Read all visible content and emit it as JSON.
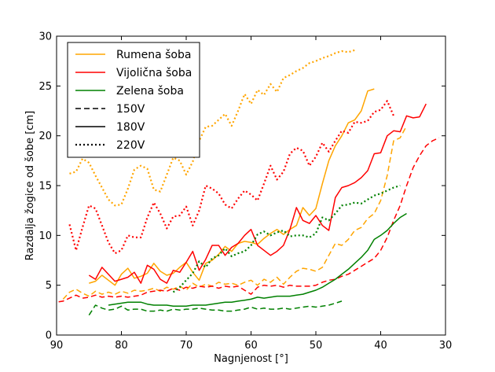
{
  "chart_data": {
    "type": "line",
    "xlabel": "Nagnjenost [°]",
    "ylabel": "Razdalja žogice od šobe [cm]",
    "xlim": [
      90,
      30
    ],
    "ylim": [
      0,
      30
    ],
    "x_ticks": [
      90,
      80,
      70,
      60,
      50,
      40,
      30
    ],
    "y_ticks": [
      0,
      5,
      10,
      15,
      20,
      25,
      30
    ],
    "grid": false,
    "legend_position": "top-left",
    "legend": [
      {
        "label": "Rumena šoba",
        "color": "#ffa500",
        "dash": "solid"
      },
      {
        "label": "Vijolična šoba",
        "color": "#ff0000",
        "dash": "solid"
      },
      {
        "label": "Zelena šoba",
        "color": "#008000",
        "dash": "solid"
      },
      {
        "label": "150V",
        "color": "#000000",
        "dash": "dashed"
      },
      {
        "label": "180V",
        "color": "#000000",
        "dash": "solid"
      },
      {
        "label": "220V",
        "color": "#000000",
        "dash": "dotted"
      }
    ],
    "series": [
      {
        "nozzle": "Rumena šoba",
        "voltage": "150V",
        "color": "#ffa500",
        "dash": "dashed",
        "x": [
          89,
          88,
          87,
          86,
          85,
          84,
          83,
          82,
          81,
          80,
          79,
          78,
          77,
          76,
          75,
          74,
          73,
          72,
          71,
          70,
          69,
          68,
          67,
          66,
          65,
          64,
          63,
          62,
          61,
          60,
          59,
          58,
          57,
          56,
          55,
          54,
          53,
          52,
          51,
          50,
          49,
          48,
          47,
          46,
          45,
          44,
          43,
          42,
          41,
          40,
          39,
          38,
          37,
          36
        ],
        "y": [
          3.6,
          4.3,
          4.6,
          4.2,
          3.9,
          4.4,
          4.1,
          4.3,
          4.1,
          4.4,
          4.2,
          4.5,
          4.4,
          4.5,
          4.7,
          4.4,
          4.8,
          4.6,
          4.9,
          4.5,
          5.2,
          4.8,
          5.1,
          4.9,
          5.3,
          5.1,
          5.2,
          5.0,
          5.3,
          5.5,
          5.0,
          5.6,
          5.3,
          5.8,
          5.1,
          5.8,
          6.4,
          6.7,
          6.6,
          6.4,
          6.8,
          8.0,
          9.2,
          9.0,
          9.6,
          10.5,
          10.8,
          11.7,
          12.2,
          13.5,
          16.0,
          19.5,
          19.8,
          21.0
        ]
      },
      {
        "nozzle": "Rumena šoba",
        "voltage": "180V",
        "color": "#ffa500",
        "dash": "solid",
        "x": [
          85,
          84,
          83,
          82,
          81,
          80,
          79,
          78,
          77,
          76,
          75,
          74,
          73,
          72,
          71,
          70,
          69,
          68,
          67,
          66,
          65,
          64,
          63,
          62,
          61,
          60,
          59,
          58,
          57,
          56,
          55,
          54,
          53,
          52,
          51,
          50,
          49,
          48,
          47,
          46,
          45,
          44,
          43,
          42,
          41
        ],
        "y": [
          5.2,
          5.4,
          6.0,
          5.5,
          5.0,
          6.1,
          6.7,
          5.7,
          5.9,
          6.2,
          7.2,
          6.4,
          6.0,
          6.2,
          6.8,
          7.3,
          6.3,
          5.5,
          7.2,
          7.5,
          8.1,
          8.9,
          8.4,
          9.2,
          9.4,
          9.3,
          9.1,
          9.7,
          10.2,
          10.6,
          10.1,
          10.6,
          11.0,
          12.8,
          12.0,
          12.7,
          15.2,
          17.5,
          19.0,
          20.0,
          21.3,
          21.6,
          22.5,
          24.5,
          24.7
        ]
      },
      {
        "nozzle": "Rumena šoba",
        "voltage": "220V",
        "color": "#ffa500",
        "dash": "dotted",
        "x": [
          88,
          87,
          86,
          85,
          84,
          83,
          82,
          81,
          80,
          79,
          78,
          77,
          76,
          75,
          74,
          73,
          72,
          71,
          70,
          69,
          68,
          67,
          66,
          65,
          64,
          63,
          62,
          61,
          60,
          59,
          58,
          57,
          56,
          55,
          54,
          53,
          52,
          51,
          50,
          49,
          48,
          47,
          46,
          45,
          44
        ],
        "y": [
          16.2,
          16.4,
          17.7,
          17.3,
          16.0,
          14.8,
          13.6,
          13.0,
          13.1,
          14.7,
          16.6,
          17.0,
          16.7,
          14.6,
          14.4,
          16.1,
          17.8,
          17.5,
          16.1,
          17.4,
          19.5,
          20.9,
          21.0,
          21.6,
          22.2,
          21.0,
          22.5,
          24.2,
          23.2,
          24.6,
          24.1,
          25.2,
          24.4,
          25.8,
          26.1,
          26.5,
          26.8,
          27.3,
          27.5,
          27.8,
          28.0,
          28.3,
          28.5,
          28.4,
          28.6
        ]
      },
      {
        "nozzle": "Vijolična šoba",
        "voltage": "150V",
        "color": "#ff0000",
        "dash": "dashed",
        "x": [
          91,
          90,
          89,
          88,
          87,
          86,
          85,
          84,
          83,
          82,
          81,
          80,
          79,
          78,
          77,
          76,
          75,
          74,
          73,
          72,
          71,
          70,
          69,
          68,
          67,
          66,
          65,
          64,
          63,
          62,
          61,
          60,
          59,
          58,
          57,
          56,
          55,
          54,
          53,
          52,
          51,
          50,
          49,
          48,
          47,
          46,
          45,
          44,
          43,
          42,
          41,
          40,
          39,
          38,
          37,
          36,
          35,
          34,
          33,
          32,
          31
        ],
        "y": [
          3.4,
          3.3,
          3.4,
          3.7,
          4.0,
          3.7,
          3.8,
          4.0,
          3.8,
          3.9,
          3.8,
          3.9,
          3.8,
          3.9,
          4.0,
          4.3,
          4.4,
          4.5,
          4.4,
          4.7,
          4.5,
          4.8,
          4.7,
          4.9,
          4.8,
          4.9,
          4.7,
          4.9,
          4.8,
          4.9,
          4.5,
          4.1,
          4.8,
          5.0,
          4.9,
          5.0,
          4.8,
          5.0,
          4.9,
          4.9,
          4.9,
          5.0,
          5.3,
          5.5,
          5.6,
          5.9,
          6.1,
          6.5,
          6.9,
          7.3,
          7.7,
          8.5,
          9.8,
          11.5,
          13.0,
          15.0,
          16.8,
          18.0,
          19.0,
          19.5,
          19.8
        ]
      },
      {
        "nozzle": "Vijolična šoba",
        "voltage": "180V",
        "color": "#ff0000",
        "dash": "solid",
        "x": [
          85,
          84,
          83,
          82,
          81,
          80,
          79,
          78,
          77,
          76,
          75,
          74,
          73,
          72,
          71,
          70,
          69,
          68,
          67,
          66,
          65,
          64,
          63,
          62,
          61,
          60,
          59,
          58,
          57,
          56,
          55,
          54,
          53,
          52,
          51,
          50,
          49,
          48,
          47,
          46,
          45,
          44,
          43,
          42,
          41,
          40,
          39,
          38,
          37,
          36,
          35,
          34,
          33
        ],
        "y": [
          6.0,
          5.6,
          6.8,
          6.1,
          5.4,
          5.6,
          5.8,
          6.3,
          5.2,
          7.0,
          6.6,
          5.6,
          5.2,
          6.5,
          6.3,
          7.3,
          8.4,
          6.5,
          7.6,
          9.0,
          9.0,
          8.0,
          8.8,
          9.2,
          10.0,
          10.6,
          9.0,
          8.5,
          8.0,
          8.4,
          9.0,
          10.6,
          12.8,
          11.5,
          11.2,
          12.0,
          11.0,
          10.5,
          13.8,
          14.8,
          15.0,
          15.3,
          15.8,
          16.5,
          18.2,
          18.3,
          20.0,
          20.5,
          20.4,
          22.0,
          21.8,
          21.9,
          23.2
        ]
      },
      {
        "nozzle": "Vijolična šoba",
        "voltage": "220V",
        "color": "#ff0000",
        "dash": "dotted",
        "x": [
          88,
          87,
          86,
          85,
          84,
          83,
          82,
          81,
          80,
          79,
          78,
          77,
          76,
          75,
          74,
          73,
          72,
          71,
          70,
          69,
          68,
          67,
          66,
          65,
          64,
          63,
          62,
          61,
          60,
          59,
          58,
          57,
          56,
          55,
          54,
          53,
          52,
          51,
          50,
          49,
          48,
          47,
          46,
          45,
          44,
          43,
          42,
          41,
          40,
          39,
          38
        ],
        "y": [
          11.1,
          8.5,
          10.8,
          13.0,
          12.7,
          11.0,
          9.3,
          8.2,
          8.5,
          10.0,
          9.8,
          9.8,
          11.8,
          13.3,
          12.2,
          10.7,
          11.9,
          12.0,
          12.9,
          11.0,
          12.5,
          15.0,
          14.7,
          14.2,
          13.1,
          12.7,
          13.7,
          14.5,
          14.1,
          13.5,
          15.2,
          17.0,
          15.6,
          16.4,
          18.2,
          18.8,
          18.5,
          17.0,
          17.9,
          19.3,
          18.4,
          19.5,
          20.5,
          20.3,
          21.4,
          21.3,
          21.5,
          22.4,
          22.6,
          23.5,
          22.0
        ]
      },
      {
        "nozzle": "Zelena šoba",
        "voltage": "150V",
        "color": "#008000",
        "dash": "dashed",
        "x": [
          85,
          84,
          83,
          82,
          81,
          80,
          79,
          78,
          77,
          76,
          75,
          74,
          73,
          72,
          71,
          70,
          69,
          68,
          67,
          66,
          65,
          64,
          63,
          62,
          61,
          60,
          59,
          58,
          57,
          56,
          55,
          54,
          53,
          52,
          51,
          50,
          49,
          48,
          47,
          46
        ],
        "y": [
          2.0,
          3.0,
          2.7,
          2.5,
          2.6,
          2.9,
          2.5,
          2.6,
          2.6,
          2.4,
          2.4,
          2.5,
          2.4,
          2.6,
          2.5,
          2.6,
          2.6,
          2.7,
          2.6,
          2.5,
          2.5,
          2.4,
          2.4,
          2.5,
          2.6,
          2.8,
          2.6,
          2.7,
          2.6,
          2.6,
          2.7,
          2.6,
          2.7,
          2.8,
          2.9,
          2.8,
          2.9,
          3.0,
          3.2,
          3.4
        ]
      },
      {
        "nozzle": "Zelena šoba",
        "voltage": "180V",
        "color": "#008000",
        "dash": "solid",
        "x": [
          82,
          81,
          80,
          79,
          78,
          77,
          76,
          75,
          74,
          73,
          72,
          71,
          70,
          69,
          68,
          67,
          66,
          65,
          64,
          63,
          62,
          61,
          60,
          59,
          58,
          57,
          56,
          55,
          54,
          53,
          52,
          51,
          50,
          49,
          48,
          47,
          46,
          45,
          44,
          43,
          42,
          41,
          40,
          39,
          38,
          37,
          36
        ],
        "y": [
          3.0,
          3.1,
          3.2,
          3.3,
          3.3,
          3.3,
          3.1,
          3.0,
          3.0,
          3.0,
          2.9,
          2.9,
          2.9,
          3.0,
          3.0,
          3.0,
          3.1,
          3.2,
          3.3,
          3.3,
          3.4,
          3.5,
          3.6,
          3.8,
          3.7,
          3.8,
          3.9,
          3.9,
          3.9,
          4.0,
          4.1,
          4.3,
          4.5,
          4.8,
          5.2,
          5.6,
          6.1,
          6.6,
          7.2,
          7.8,
          8.5,
          9.6,
          10.0,
          10.5,
          11.2,
          11.8,
          12.2
        ]
      },
      {
        "nozzle": "Zelena šoba",
        "voltage": "220V",
        "color": "#008000",
        "dash": "dotted",
        "x": [
          72,
          71,
          70,
          69,
          68,
          67,
          66,
          65,
          64,
          63,
          62,
          61,
          60,
          59,
          58,
          57,
          56,
          55,
          54,
          53,
          52,
          51,
          50,
          49,
          48,
          47,
          46,
          45,
          44,
          43,
          42,
          41,
          40,
          39,
          38,
          37
        ],
        "y": [
          4.3,
          4.8,
          5.5,
          6.2,
          7.4,
          6.8,
          7.7,
          8.0,
          8.7,
          7.9,
          8.2,
          8.4,
          9.0,
          10.1,
          10.4,
          10.0,
          10.3,
          10.5,
          9.9,
          10.0,
          10.0,
          9.8,
          10.2,
          11.8,
          11.5,
          12.2,
          13.0,
          13.1,
          13.3,
          13.2,
          13.6,
          14.0,
          14.2,
          14.5,
          14.8,
          15.0
        ]
      }
    ]
  }
}
